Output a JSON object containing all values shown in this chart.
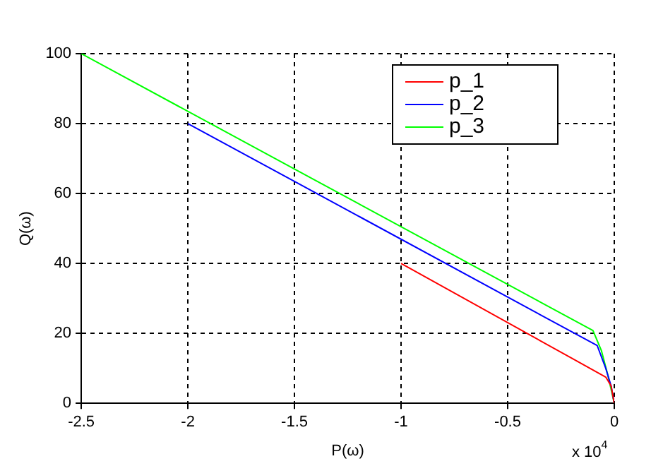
{
  "chart_data": {
    "type": "line",
    "xlabel": "P(ω)",
    "ylabel": "Q(ω)",
    "xlim": [
      -2.5,
      0
    ],
    "xticks": [
      -2.5,
      -2,
      -1.5,
      -1,
      -0.5,
      0
    ],
    "ylim": [
      0,
      100
    ],
    "yticks": [
      0,
      20,
      40,
      60,
      80,
      100
    ],
    "grid": true,
    "legend": "top right",
    "marker": "none",
    "line_style": "solid",
    "annotations": [
      "x 10$^{4}$"
    ],
    "series": [
      {
        "name": "p_1",
        "color": "#ff0000",
        "x": [
          -1,
          -0.04,
          -0.015,
          0
        ],
        "values": [
          40,
          7.5,
          5,
          0
        ]
      },
      {
        "name": "p_2",
        "color": "#0000ff",
        "x": [
          -2,
          -0.08,
          -0.04,
          -0.015,
          0
        ],
        "values": [
          80,
          16.5,
          10,
          5,
          0
        ]
      },
      {
        "name": "p_3",
        "color": "#00ff00",
        "x": [
          -2.5,
          -0.1,
          -0.06,
          -0.03,
          0
        ],
        "values": [
          100,
          20.8,
          15,
          8,
          0
        ]
      }
    ]
  }
}
